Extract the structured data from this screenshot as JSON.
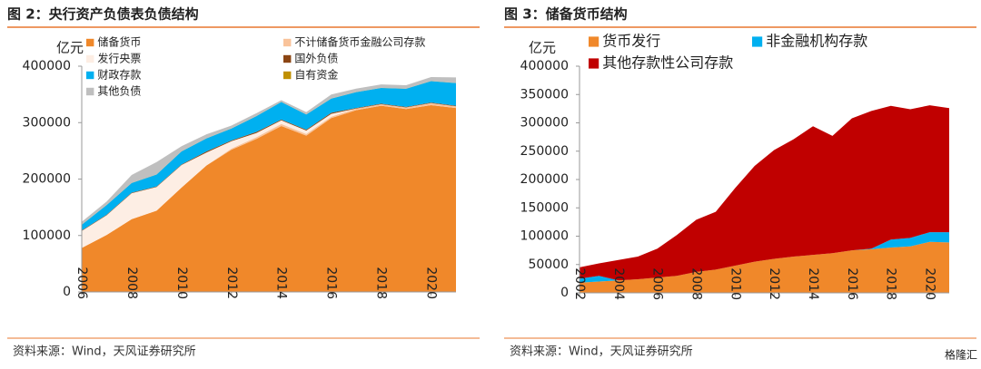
{
  "chart_data": [
    {
      "type": "area",
      "title": "图 2：央行资产负债表负债结构",
      "y_unit": "亿元",
      "source": "资料来源：Wind，天风证券研究所",
      "x": [
        2006,
        2007,
        2008,
        2009,
        2010,
        2011,
        2012,
        2013,
        2014,
        2015,
        2016,
        2017,
        2018,
        2019,
        2020,
        2021
      ],
      "xlim": [
        2006,
        2021
      ],
      "xticks": [
        2006,
        2008,
        2010,
        2012,
        2014,
        2016,
        2018,
        2020
      ],
      "ylim": [
        0,
        400000
      ],
      "yticks": [
        0,
        100000,
        200000,
        300000,
        400000
      ],
      "stacked": true,
      "series": [
        {
          "name": "储备货币",
          "color": "#f0882a",
          "values": [
            78000,
            101000,
            129000,
            144000,
            185000,
            224000,
            252000,
            271000,
            294000,
            277000,
            308000,
            322000,
            330000,
            324000,
            331000,
            326000
          ]
        },
        {
          "name": "不计储备货币金融公司存款",
          "color": "#f9c39a",
          "values": [
            0,
            0,
            0,
            0,
            0,
            0,
            2000,
            3000,
            3500,
            3000,
            2500,
            3000,
            2500,
            3000,
            3500,
            3000
          ]
        },
        {
          "name": "发行央票",
          "color": "#fdeee4",
          "values": [
            30000,
            35000,
            46000,
            42000,
            40000,
            23000,
            13000,
            7500,
            6500,
            6000,
            5000,
            0,
            0,
            0,
            0,
            0
          ]
        },
        {
          "name": "国外负债",
          "color": "#8b4513",
          "values": [
            1000,
            1000,
            1000,
            1000,
            1000,
            2000,
            1500,
            2000,
            1500,
            1500,
            2000,
            1000,
            1000,
            1000,
            1000,
            1000
          ]
        },
        {
          "name": "财政存款",
          "color": "#00b0f0",
          "values": [
            10000,
            17000,
            17000,
            21000,
            23000,
            23000,
            21000,
            28000,
            31000,
            27000,
            25000,
            28000,
            28000,
            32000,
            38000,
            40000
          ]
        },
        {
          "name": "自有资金",
          "color": "#c09000",
          "values": [
            219,
            219,
            219,
            219,
            219,
            219,
            219,
            219,
            219,
            219,
            219,
            219,
            219,
            219,
            219,
            219
          ]
        },
        {
          "name": "其他负债",
          "color": "#bfbfbf",
          "values": [
            5000,
            6000,
            14000,
            22000,
            9000,
            7000,
            5000,
            5000,
            3000,
            4000,
            7000,
            6000,
            6000,
            6000,
            7000,
            10000
          ]
        }
      ]
    },
    {
      "type": "area",
      "title": "图 3：储备货币结构",
      "y_unit": "亿元",
      "source": "资料来源：Wind，天风证券研究所",
      "x": [
        2002,
        2003,
        2004,
        2005,
        2006,
        2007,
        2008,
        2009,
        2010,
        2011,
        2012,
        2013,
        2014,
        2015,
        2016,
        2017,
        2018,
        2019,
        2020,
        2021
      ],
      "xlim": [
        2002,
        2021
      ],
      "xticks": [
        2002,
        2004,
        2006,
        2008,
        2010,
        2012,
        2014,
        2016,
        2018,
        2020
      ],
      "ylim": [
        0,
        400000
      ],
      "yticks": [
        0,
        50000,
        100000,
        150000,
        200000,
        250000,
        300000,
        350000,
        400000
      ],
      "stacked": true,
      "series": [
        {
          "name": "货币发行",
          "color": "#f0882a",
          "values": [
            18000,
            20000,
            22000,
            24000,
            27000,
            30000,
            37000,
            41000,
            48000,
            55000,
            60000,
            64000,
            67000,
            70000,
            75000,
            77000,
            80000,
            82000,
            90000,
            89000
          ]
        },
        {
          "name": "非金融机构存款",
          "color": "#00b0f0",
          "values": [
            7000,
            10000,
            0,
            0,
            0,
            0,
            0,
            0,
            0,
            0,
            0,
            0,
            0,
            0,
            0,
            1000,
            14000,
            15000,
            17000,
            18000
          ]
        },
        {
          "name": "其他存款性公司存款",
          "color": "#c00000",
          "values": [
            20000,
            22000,
            36000,
            40000,
            51000,
            72000,
            92000,
            102000,
            137000,
            169000,
            192000,
            207000,
            227000,
            207000,
            233000,
            243000,
            236000,
            227000,
            224000,
            219000
          ]
        }
      ]
    }
  ],
  "watermark": "格隆汇"
}
